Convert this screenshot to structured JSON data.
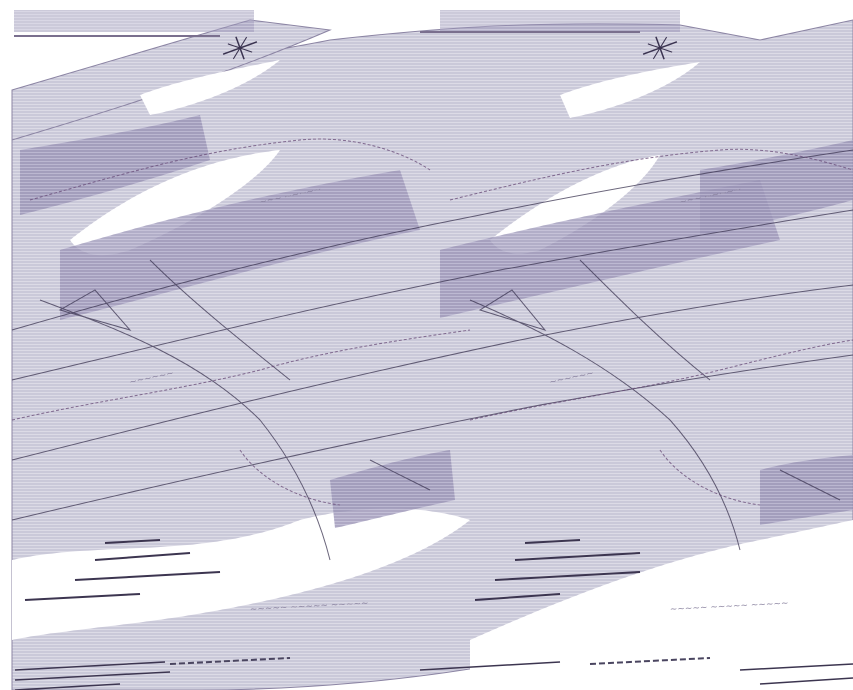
{
  "map": {
    "title_repeat_count": 2,
    "colors": {
      "background": "#ffffff",
      "land_fill": "#dcdbe6",
      "land_hatch": "#b9b7cc",
      "dark_region": "#9d97b8",
      "road": "#3a3350",
      "boundary": "#6b4f7a",
      "text": "#3c3550"
    },
    "tiles": [
      {
        "id": "left",
        "title": "",
        "legend": [
          "",
          "",
          "",
          ""
        ],
        "scale_label": ""
      },
      {
        "id": "right",
        "title": "",
        "legend": [
          "",
          "",
          "",
          ""
        ],
        "scale_label": ""
      }
    ],
    "icons": [
      "compass-rose-icon",
      "compass-rose-icon"
    ],
    "style_note_visible": false
  }
}
